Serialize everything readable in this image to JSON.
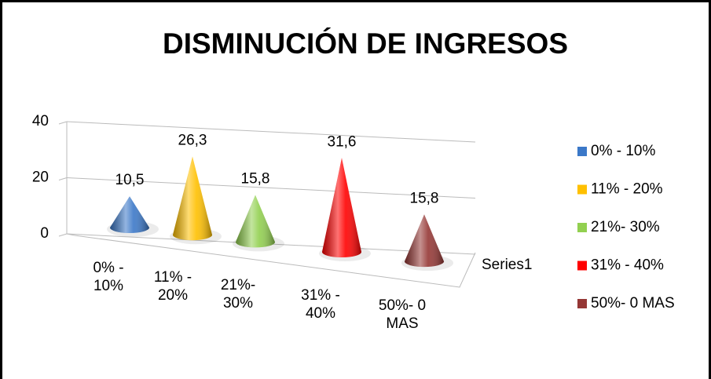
{
  "chart_data": {
    "type": "cone3d",
    "title": "DISMINUCIÓN DE INGRESOS",
    "categories": [
      "0% - 10%",
      "11% - 20%",
      "21%- 30%",
      "31% - 40%",
      "50%- 0 MAS"
    ],
    "series": [
      {
        "name": "Series1",
        "colors": [
          "#3b78c8",
          "#ffc000",
          "#92d050",
          "#ff0000",
          "#953735"
        ],
        "values": [
          10.5,
          26.3,
          15.8,
          31.6,
          15.8
        ],
        "value_labels": [
          "10,5",
          "26,3",
          "15,8",
          "31,6",
          "15,8"
        ]
      }
    ],
    "ylim": [
      0,
      40
    ],
    "yticks": [
      0,
      20,
      40
    ],
    "grid": true,
    "legend": "right"
  }
}
